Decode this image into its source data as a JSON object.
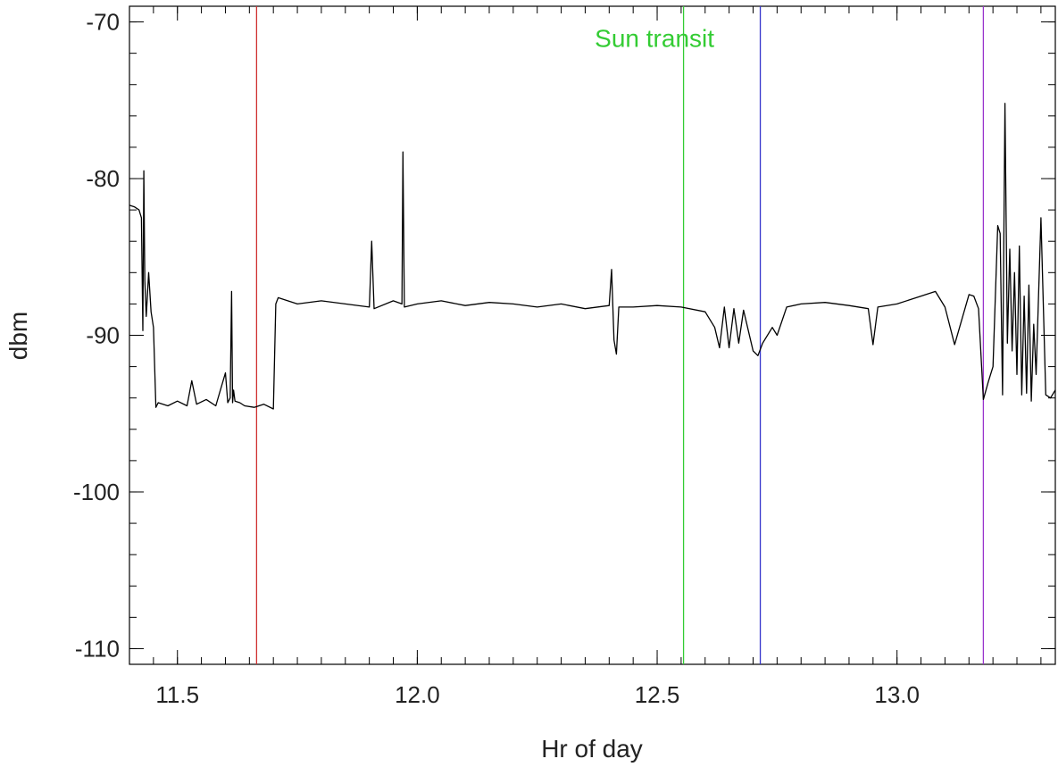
{
  "chart_data": {
    "type": "line",
    "title": "",
    "xlabel": "Hr of day",
    "ylabel": "dbm",
    "xlim": [
      11.4,
      13.33
    ],
    "ylim": [
      -111,
      -69
    ],
    "grid": false,
    "xticks": [
      11.5,
      12.0,
      12.5,
      13.0
    ],
    "xtick_labels": [
      "11.5",
      "12.0",
      "12.5",
      "13.0"
    ],
    "yticks": [
      -70,
      -80,
      -90,
      -100,
      -110
    ],
    "ytick_labels": [
      "-70",
      "-80",
      "-90",
      "-100",
      "-110"
    ],
    "series": [
      {
        "color": "#000000",
        "x": [
          11.4,
          11.41,
          11.42,
          11.425,
          11.428,
          11.43,
          11.432,
          11.435,
          11.44,
          11.445,
          11.45,
          11.455,
          11.46,
          11.48,
          11.5,
          11.52,
          11.53,
          11.54,
          11.56,
          11.58,
          11.6,
          11.605,
          11.61,
          11.613,
          11.615,
          11.617,
          11.62,
          11.63,
          11.64,
          11.66,
          11.68,
          11.7,
          11.705,
          11.71,
          11.75,
          11.8,
          11.85,
          11.9,
          11.905,
          11.91,
          11.95,
          11.968,
          11.97,
          11.973,
          12.0,
          12.05,
          12.1,
          12.15,
          12.2,
          12.25,
          12.3,
          12.35,
          12.4,
          12.405,
          12.41,
          12.415,
          12.42,
          12.45,
          12.5,
          12.55,
          12.6,
          12.62,
          12.63,
          12.64,
          12.65,
          12.66,
          12.67,
          12.68,
          12.7,
          12.71,
          12.72,
          12.74,
          12.75,
          12.77,
          12.8,
          12.85,
          12.9,
          12.94,
          12.95,
          12.96,
          13.0,
          13.05,
          13.08,
          13.1,
          13.12,
          13.15,
          13.16,
          13.17,
          13.18,
          13.19,
          13.2,
          13.21,
          13.215,
          13.22,
          13.225,
          13.23,
          13.235,
          13.24,
          13.245,
          13.25,
          13.255,
          13.26,
          13.265,
          13.27,
          13.275,
          13.28,
          13.285,
          13.29,
          13.3,
          13.31,
          13.32,
          13.33
        ],
        "y": [
          -81.7,
          -81.8,
          -82.0,
          -82.5,
          -89.7,
          -79.5,
          -86.5,
          -88.8,
          -86.0,
          -88.5,
          -89.5,
          -94.6,
          -94.3,
          -94.5,
          -94.2,
          -94.5,
          -92.9,
          -94.4,
          -94.1,
          -94.5,
          -92.4,
          -94.3,
          -94.0,
          -87.2,
          -94.3,
          -93.5,
          -94.2,
          -94.3,
          -94.5,
          -94.6,
          -94.4,
          -94.7,
          -88.0,
          -87.6,
          -88.0,
          -87.8,
          -88.0,
          -88.2,
          -84.0,
          -88.3,
          -87.8,
          -88.0,
          -78.3,
          -88.2,
          -88.0,
          -87.8,
          -88.1,
          -87.9,
          -88.0,
          -88.2,
          -88.0,
          -88.3,
          -88.1,
          -85.8,
          -90.3,
          -91.2,
          -88.2,
          -88.2,
          -88.1,
          -88.2,
          -88.5,
          -89.5,
          -90.8,
          -88.2,
          -90.8,
          -88.3,
          -90.5,
          -88.4,
          -91.0,
          -91.3,
          -90.5,
          -89.5,
          -90.0,
          -88.2,
          -88.0,
          -87.9,
          -88.1,
          -88.3,
          -90.6,
          -88.2,
          -88.0,
          -87.5,
          -87.2,
          -88.2,
          -90.6,
          -87.4,
          -87.5,
          -88.3,
          -94.1,
          -93.0,
          -92.0,
          -83.0,
          -83.5,
          -93.8,
          -75.2,
          -90.5,
          -84.5,
          -91.0,
          -86.0,
          -92.5,
          -84.3,
          -93.8,
          -87.5,
          -93.7,
          -86.8,
          -94.2,
          -89.3,
          -92.5,
          -82.5,
          -93.8,
          -94.0,
          -93.5
        ]
      }
    ],
    "vertical_lines": [
      {
        "x": 11.665,
        "color": "#d03030"
      },
      {
        "x": 12.555,
        "color": "#33cc33"
      },
      {
        "x": 12.715,
        "color": "#3333cc"
      },
      {
        "x": 13.18,
        "color": "#9933cc"
      }
    ],
    "annotations": [
      {
        "text": "Sun transit",
        "x": 12.37,
        "y": -71.6,
        "color": "#33cc33"
      }
    ]
  }
}
